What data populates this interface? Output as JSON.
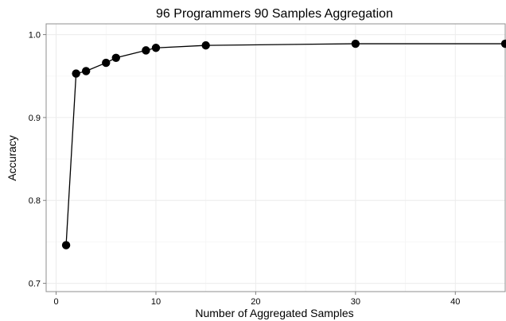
{
  "chart_data": {
    "type": "line",
    "title": "96 Programmers 90 Samples Aggregation",
    "xlabel": "Number of Aggregated Samples",
    "ylabel": "Accuracy",
    "xlim": [
      -1,
      45
    ],
    "ylim": [
      0.69,
      1.013
    ],
    "x_ticks": [
      0,
      10,
      20,
      30,
      40
    ],
    "y_ticks": [
      0.7,
      0.8,
      0.9,
      1.0
    ],
    "x_tick_labels": [
      "0",
      "10",
      "20",
      "30",
      "40"
    ],
    "y_tick_labels": [
      "0.7",
      "0.8",
      "0.9",
      "1.0"
    ],
    "grid": true,
    "series": [
      {
        "x": [
          1,
          2,
          3,
          5,
          6,
          9,
          10,
          15,
          30,
          45
        ],
        "values": [
          0.746,
          0.953,
          0.956,
          0.966,
          0.972,
          0.981,
          0.984,
          0.987,
          0.989,
          0.989
        ]
      }
    ]
  }
}
